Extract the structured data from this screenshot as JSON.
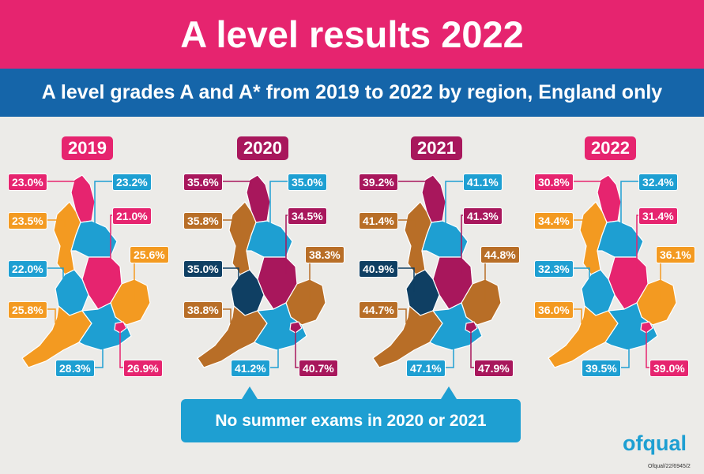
{
  "title": "A level results 2022",
  "subtitle": "A level grades A and A* from 2019 to 2022 by region, England only",
  "note": "No summer exams in 2020 or 2021",
  "logo": "ofqual",
  "code": "Ofqual/22/6945/2",
  "colors": {
    "pink": "#e6246f",
    "magenta": "#a8175c",
    "blue": "#1e9fd2",
    "navy": "#0f3f63",
    "orange": "#f39a21",
    "brown": "#b86e27",
    "header_bg": "#e6246f",
    "subheader_bg": "#1565a9"
  },
  "chart_data": {
    "type": "map",
    "unit": "% of grades A and A*",
    "regions": [
      "North East",
      "North West",
      "Yorkshire and The Humber",
      "East Midlands",
      "West Midlands",
      "East of England",
      "South West",
      "South East",
      "London"
    ],
    "series": [
      {
        "name": "2019",
        "values": [
          23.0,
          23.5,
          23.2,
          21.0,
          22.0,
          25.6,
          25.8,
          28.3,
          26.9
        ]
      },
      {
        "name": "2020",
        "values": [
          35.6,
          35.8,
          35.0,
          34.5,
          35.0,
          38.3,
          38.8,
          41.2,
          40.7
        ]
      },
      {
        "name": "2021",
        "values": [
          39.2,
          41.4,
          41.1,
          41.3,
          40.9,
          44.8,
          44.7,
          47.1,
          47.9
        ]
      },
      {
        "name": "2022",
        "values": [
          30.8,
          34.4,
          32.4,
          31.4,
          32.3,
          36.1,
          36.0,
          39.5,
          39.0
        ]
      }
    ]
  }
}
